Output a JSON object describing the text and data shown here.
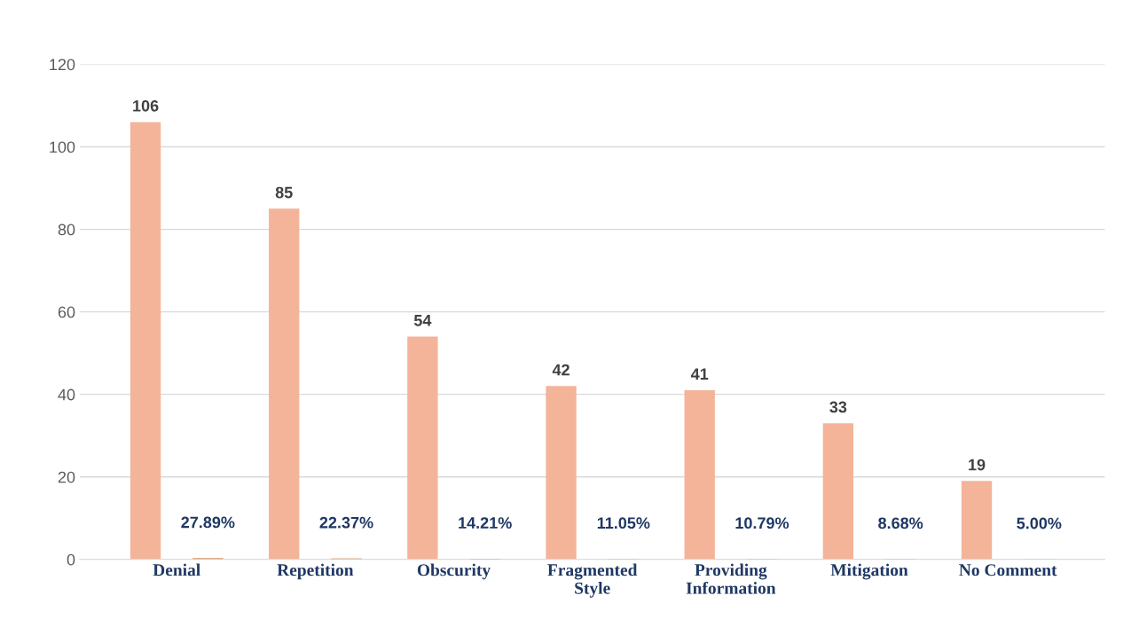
{
  "chart_data": {
    "type": "bar",
    "categories": [
      "Denial",
      "Repetition",
      "Obscurity",
      "Fragmented\nStyle",
      "Providing\nInformation",
      "Mitigation",
      "No Comment"
    ],
    "series": [
      {
        "color": "#f4b49a",
        "values": [
          106,
          85,
          54,
          42,
          41,
          33,
          19
        ],
        "value_labels": [
          "106",
          "85",
          "54",
          "42",
          "41",
          "33",
          "19"
        ]
      },
      {
        "colors": [
          "#c55a11",
          "#c55a11",
          "#c55a11",
          "#c55a11",
          "#c55a11",
          "#c55a11",
          "#843c0c"
        ],
        "values": [
          0.2789,
          0.2237,
          0.1421,
          0.1105,
          0.1079,
          0.0868,
          0.05
        ],
        "value_labels": [
          "27.89%",
          "22.37%",
          "14.21%",
          "11.05%",
          "10.79%",
          "8.68%",
          "5.00%"
        ]
      }
    ],
    "ylim": [
      0,
      120
    ],
    "yticks": [
      0,
      20,
      40,
      60,
      80,
      100,
      120
    ],
    "grid": "y",
    "legend": false
  }
}
